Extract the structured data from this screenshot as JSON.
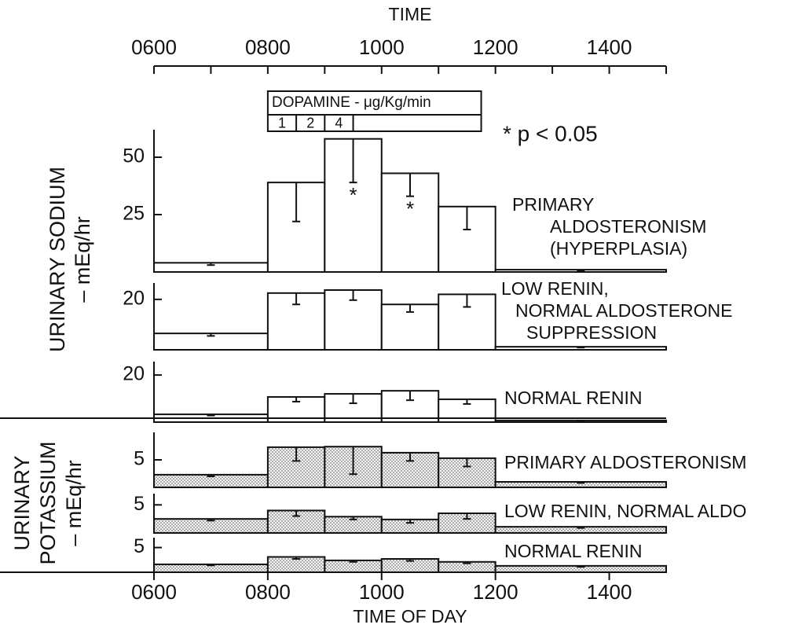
{
  "chart_data": {
    "type": "histogram",
    "title": "TIME",
    "xlabel": "TIME OF DAY",
    "xlim": [
      6,
      15
    ],
    "xticks": [
      {
        "value": 6,
        "label": "0600"
      },
      {
        "value": 8,
        "label": "0800"
      },
      {
        "value": 10,
        "label": "1000"
      },
      {
        "value": 12,
        "label": "1200"
      },
      {
        "value": 14,
        "label": "1400"
      }
    ],
    "xminorticks": [
      7,
      9,
      11,
      13,
      15
    ],
    "bins": [
      6,
      8,
      9,
      10,
      11,
      12,
      15
    ],
    "note": "* p < 0.05",
    "dopamine": {
      "label": "DOPAMINE - μg/Kg/min",
      "doses": [
        "1",
        "2",
        "4"
      ]
    },
    "groups": [
      {
        "ylabel": [
          "URINARY SODIUM",
          "– mEq/hr"
        ],
        "fill": "white",
        "panels": [
          {
            "label": [
              "PRIMARY",
              "ALDOSTERONISM",
              "(HYPERPLASIA)"
            ],
            "ylim": [
              0,
              62
            ],
            "yticks": [
              25,
              50
            ],
            "values": [
              4,
              39,
              58,
              43,
              28.5,
              1
            ],
            "errors": [
              1,
              17,
              19,
              10,
              10,
              0.5
            ],
            "markers": [
              null,
              null,
              "*",
              "*",
              null,
              null
            ]
          },
          {
            "label": [
              "LOW RENIN,",
              "NORMAL ALDOSTERONE",
              "SUPPRESSION"
            ],
            "ylim": [
              0,
              26.5
            ],
            "yticks": [
              20
            ],
            "values": [
              6.5,
              22.5,
              23.7,
              18,
              22,
              1.2
            ],
            "errors": [
              1,
              4.5,
              4,
              3,
              5,
              0.3
            ]
          },
          {
            "label": [
              "NORMAL RENIN"
            ],
            "ylim": [
              0,
              25.7
            ],
            "yticks": [
              20
            ],
            "values": [
              3.3,
              10.7,
              12,
              13.3,
              9.7,
              0.7
            ],
            "errors": [
              0.5,
              2,
              4,
              4,
              2,
              0.2
            ]
          }
        ]
      },
      {
        "ylabel": [
          "URINARY",
          "POTASSIUM",
          "– mEq/hr"
        ],
        "fill": "dotted",
        "panels": [
          {
            "label": [
              "PRIMARY ALDOSTERONISM"
            ],
            "ylim": [
              0,
              10
            ],
            "yticks": [
              5
            ],
            "values": [
              2.3,
              7.3,
              7.4,
              6.3,
              5.3,
              1
            ],
            "errors": [
              0.3,
              2.5,
              5,
              1.5,
              1.5,
              0.2
            ]
          },
          {
            "label": [
              "LOW RENIN, NORMAL ALDO"
            ],
            "ylim": [
              0,
              7
            ],
            "yticks": [
              5
            ],
            "values": [
              2.5,
              4,
              2.9,
              2.4,
              3.5,
              1.1
            ],
            "errors": [
              0.3,
              1,
              0.5,
              0.6,
              1,
              0.2
            ]
          },
          {
            "label": [
              "NORMAL RENIN"
            ],
            "ylim": [
              0,
              7
            ],
            "yticks": [
              5
            ],
            "values": [
              1.6,
              3.1,
              2.4,
              2.7,
              2.1,
              1.3
            ],
            "errors": [
              0.2,
              0.4,
              0.3,
              0.4,
              0.3,
              0.2
            ]
          }
        ]
      }
    ]
  }
}
